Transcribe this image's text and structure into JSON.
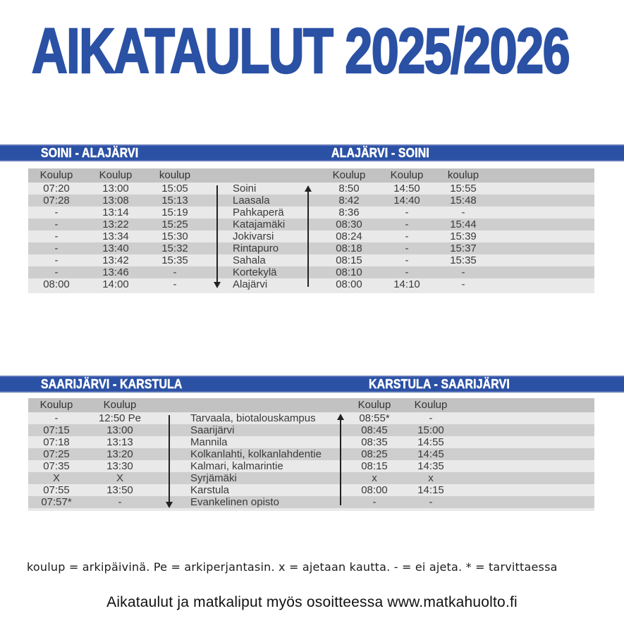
{
  "page": {
    "title": "AIKATAULUT 2025/2026",
    "footnote": "koulup = arkipäivinä. Pe = arkiperjantasin. x = ajetaan kautta. - = ei ajeta. * = tarvittaessa",
    "website_line": "Aikataulut ja matkaliput myös osoitteessa www.matkahuolto.fi"
  },
  "colors": {
    "accent_blue": "#2b51a5",
    "header_row_gray": "#c2c2c2",
    "stripe_dark": "#cecece",
    "stripe_light": "#e9e9e9"
  },
  "tables": [
    {
      "left_title": "SOINI - ALAJÄRVI",
      "right_title": "ALAJÄRVI - SOINI",
      "left_headers": [
        "Koulup",
        "Koulup",
        "koulup"
      ],
      "right_headers": [
        "Koulup",
        "Koulup",
        "koulup"
      ],
      "rows": [
        {
          "left": [
            "07:20",
            "13:00",
            "15:05"
          ],
          "place": "Soini",
          "right": [
            "8:50",
            "14:50",
            "15:55"
          ]
        },
        {
          "left": [
            "07:28",
            "13:08",
            "15:13"
          ],
          "place": "Laasala",
          "right": [
            "8:42",
            "14:40",
            "15:48"
          ]
        },
        {
          "left": [
            "-",
            "13:14",
            "15:19"
          ],
          "place": "Pahkaperä",
          "right": [
            "8:36",
            "-",
            "-"
          ]
        },
        {
          "left": [
            "-",
            "13:22",
            "15:25"
          ],
          "place": "Katajamäki",
          "right": [
            "08:30",
            "-",
            "15:44"
          ]
        },
        {
          "left": [
            "-",
            "13:34",
            "15:30"
          ],
          "place": "Jokivarsi",
          "right": [
            "08:24",
            "-",
            "15:39"
          ]
        },
        {
          "left": [
            "-",
            "13:40",
            "15:32"
          ],
          "place": "Rintapuro",
          "right": [
            "08:18",
            "-",
            "15:37"
          ]
        },
        {
          "left": [
            "-",
            "13:42",
            "15:35"
          ],
          "place": "Sahala",
          "right": [
            "08:15",
            "-",
            "15:35"
          ]
        },
        {
          "left": [
            "-",
            "13:46",
            "-"
          ],
          "place": "Kortekylä",
          "right": [
            "08:10",
            "-",
            "-"
          ]
        },
        {
          "left": [
            "08:00",
            "14:00",
            "-"
          ],
          "place": "Alajärvi",
          "right": [
            "08:00",
            "14:10",
            "-"
          ]
        }
      ]
    },
    {
      "left_title": "SAARIJÄRVI - KARSTULA",
      "right_title": "KARSTULA - SAARIJÄRVI",
      "left_headers": [
        "Koulup",
        "Koulup"
      ],
      "right_headers": [
        "Koulup",
        "Koulup"
      ],
      "rows": [
        {
          "left": [
            "-",
            "12:50 Pe"
          ],
          "place": "Tarvaala, biotalouskampus",
          "right": [
            "08:55*",
            "-"
          ]
        },
        {
          "left": [
            "07:15",
            "13:00"
          ],
          "place": "Saarijärvi",
          "right": [
            "08:45",
            "15:00"
          ]
        },
        {
          "left": [
            "07:18",
            "13:13"
          ],
          "place": "Mannila",
          "right": [
            "08:35",
            "14:55"
          ]
        },
        {
          "left": [
            "07:25",
            "13:20"
          ],
          "place": "Kolkanlahti, kolkanlahdentie",
          "right": [
            "08:25",
            "14:45"
          ]
        },
        {
          "left": [
            "07:35",
            "13:30"
          ],
          "place": "Kalmari, kalmarintie",
          "right": [
            "08:15",
            "14:35"
          ]
        },
        {
          "left": [
            "X",
            "X"
          ],
          "place": "Syrjämäki",
          "right": [
            "x",
            "x"
          ]
        },
        {
          "left": [
            "07:55",
            "13:50"
          ],
          "place": "Karstula",
          "right": [
            "08:00",
            "14:15"
          ]
        },
        {
          "left": [
            "07:57*",
            "-"
          ],
          "place": "Evankelinen opisto",
          "right": [
            "-",
            "-"
          ]
        }
      ]
    }
  ]
}
